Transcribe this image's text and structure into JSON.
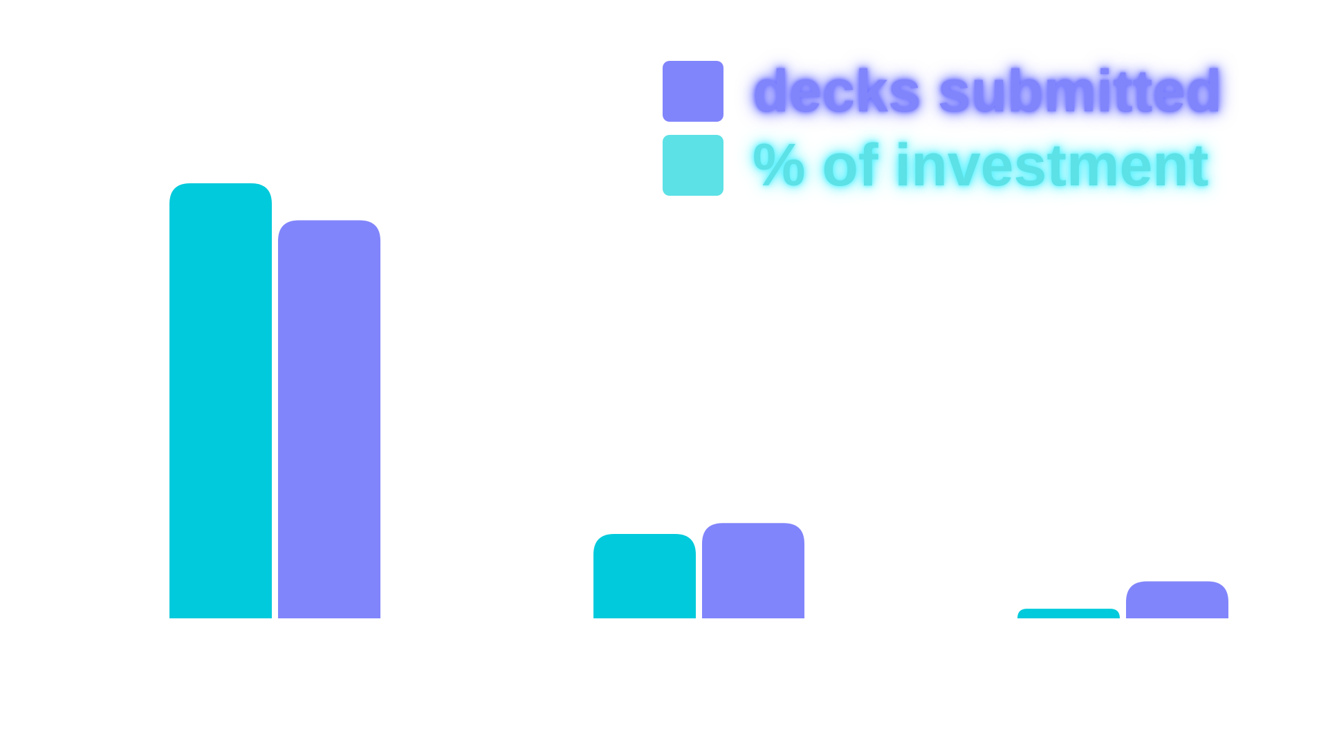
{
  "chart_data": {
    "type": "bar",
    "categories": [
      "",
      "",
      ""
    ],
    "series": [
      {
        "name": "% of investment",
        "color": "#00CADB",
        "values": [
          100,
          19.4,
          2.2
        ]
      },
      {
        "name": "decks submitted",
        "color": "#8185FB",
        "values": [
          91.5,
          21.9,
          8.5
        ]
      }
    ],
    "ylim": [
      0,
      100
    ],
    "grid": false,
    "legend_position": "top-right",
    "legend": [
      {
        "label": "decks submitted",
        "color": "#8185FB",
        "glow": "#6F74FF"
      },
      {
        "label": "% of investment",
        "color": "#5CE1E6",
        "glow": "#5CF2FF"
      }
    ]
  }
}
